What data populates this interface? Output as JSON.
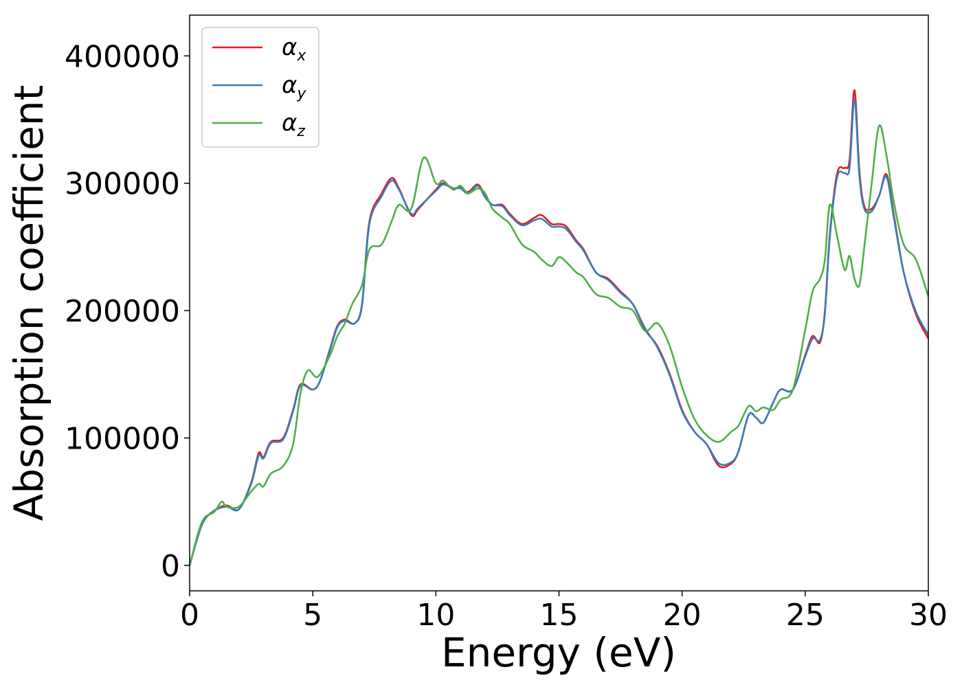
{
  "chart_data": {
    "type": "line",
    "title": "",
    "xlabel": "Energy (eV)",
    "ylabel": "Absorption coefficient",
    "xlim": [
      0,
      30
    ],
    "ylim": [
      -20000,
      432000
    ],
    "xticks": [
      0,
      5,
      10,
      15,
      20,
      25,
      30
    ],
    "yticks": [
      0,
      100000,
      200000,
      300000,
      400000
    ],
    "grid": false,
    "legend_position": "top-left",
    "series": [
      {
        "name": "α_x",
        "label_main": "α",
        "label_sub": "x",
        "color": "#e41a1c",
        "x": [
          0,
          0.5,
          1,
          1.5,
          2,
          2.5,
          2.8,
          3,
          3.3,
          3.8,
          4.2,
          4.5,
          5,
          5.3,
          5.7,
          6,
          6.3,
          6.7,
          7,
          7.3,
          7.8,
          8.2,
          8.5,
          9,
          9.3,
          10,
          10.3,
          10.7,
          11,
          11.3,
          11.7,
          12,
          12.3,
          12.7,
          13,
          13.5,
          14,
          14.3,
          14.7,
          15,
          15.3,
          15.7,
          16,
          16.5,
          17,
          17.5,
          18,
          18.5,
          19,
          19.5,
          20,
          20.5,
          21,
          21.5,
          22,
          22.3,
          22.7,
          23,
          23.3,
          23.7,
          24,
          24.5,
          25,
          25.3,
          25.6,
          25.8,
          26,
          26.3,
          26.6,
          26.8,
          27,
          27.2,
          27.4,
          27.7,
          28,
          28.3,
          28.6,
          29,
          29.5,
          30
        ],
        "y": [
          0,
          32000,
          43000,
          47000,
          44000,
          65000,
          88000,
          85000,
          97000,
          100000,
          122000,
          142000,
          138000,
          145000,
          170000,
          188000,
          193000,
          190000,
          205000,
          270000,
          292000,
          304000,
          296000,
          275000,
          280000,
          295000,
          300000,
          296000,
          297000,
          293000,
          299000,
          290000,
          283000,
          283000,
          276000,
          268000,
          273000,
          275000,
          268000,
          268000,
          266000,
          255000,
          248000,
          230000,
          225000,
          215000,
          205000,
          185000,
          172000,
          150000,
          122000,
          105000,
          95000,
          78000,
          80000,
          90000,
          118000,
          116000,
          112000,
          128000,
          138000,
          138000,
          165000,
          180000,
          175000,
          200000,
          260000,
          308000,
          312000,
          318000,
          373000,
          310000,
          282000,
          280000,
          290000,
          307000,
          275000,
          230000,
          197000,
          178000
        ]
      },
      {
        "name": "α_y",
        "label_main": "α",
        "label_sub": "y",
        "color": "#377eb8",
        "x": [
          0,
          0.5,
          1,
          1.5,
          2,
          2.5,
          2.8,
          3,
          3.3,
          3.8,
          4.2,
          4.5,
          5,
          5.3,
          5.7,
          6,
          6.3,
          6.7,
          7,
          7.3,
          7.8,
          8.2,
          8.5,
          9,
          9.3,
          10,
          10.3,
          10.7,
          11,
          11.3,
          11.7,
          12,
          12.3,
          12.7,
          13,
          13.5,
          14,
          14.3,
          14.7,
          15,
          15.3,
          15.7,
          16,
          16.5,
          17,
          17.5,
          18,
          18.5,
          19,
          19.5,
          20,
          20.5,
          21,
          21.5,
          22,
          22.3,
          22.7,
          23,
          23.3,
          23.7,
          24,
          24.5,
          25,
          25.3,
          25.6,
          25.8,
          26,
          26.3,
          26.6,
          26.8,
          27,
          27.2,
          27.4,
          27.7,
          28,
          28.3,
          28.6,
          29,
          29.5,
          30
        ],
        "y": [
          0,
          32000,
          43000,
          46000,
          44000,
          64000,
          86000,
          84000,
          96000,
          99000,
          121000,
          141000,
          138000,
          145000,
          169000,
          187000,
          192000,
          190000,
          204000,
          268000,
          290000,
          302000,
          295000,
          276000,
          281000,
          294000,
          299000,
          296000,
          296000,
          292000,
          298000,
          289000,
          283000,
          282000,
          275000,
          267000,
          271000,
          272000,
          266000,
          266000,
          264000,
          254000,
          247000,
          230000,
          224000,
          214000,
          205000,
          186000,
          171000,
          149000,
          121000,
          105000,
          95000,
          80000,
          81000,
          90000,
          118000,
          116000,
          112000,
          128000,
          138000,
          138000,
          164000,
          178000,
          177000,
          198000,
          258000,
          305000,
          308000,
          312000,
          366000,
          306000,
          280000,
          278000,
          290000,
          305000,
          273000,
          230000,
          199000,
          181000
        ]
      },
      {
        "name": "α_z",
        "label_main": "α",
        "label_sub": "z",
        "color": "#4daf4a",
        "x": [
          0,
          0.5,
          1,
          1.3,
          1.5,
          2,
          2.5,
          2.8,
          3,
          3.3,
          3.8,
          4.2,
          4.5,
          4.8,
          5.2,
          5.7,
          6,
          6.3,
          6.6,
          7,
          7.3,
          7.8,
          8.2,
          8.5,
          9,
          9.5,
          10,
          10.3,
          10.7,
          11,
          11.3,
          11.7,
          12,
          12.3,
          12.7,
          13,
          13.5,
          14,
          14.3,
          14.7,
          15,
          15.3,
          15.7,
          16,
          16.5,
          17,
          17.5,
          18,
          18.5,
          19,
          19.5,
          20,
          20.5,
          21,
          21.5,
          22,
          22.3,
          22.7,
          23,
          23.3,
          23.7,
          24,
          24.5,
          25,
          25.3,
          25.6,
          25.8,
          26,
          26.3,
          26.6,
          26.8,
          27,
          27.2,
          27.4,
          27.7,
          28,
          28.3,
          28.6,
          29,
          29.5,
          30
        ],
        "y": [
          0,
          34000,
          42000,
          50000,
          46000,
          46000,
          58000,
          64000,
          62000,
          72000,
          78000,
          95000,
          135000,
          153000,
          148000,
          165000,
          180000,
          190000,
          205000,
          220000,
          248000,
          252000,
          270000,
          283000,
          280000,
          320000,
          300000,
          302000,
          295000,
          298000,
          292000,
          296000,
          292000,
          280000,
          273000,
          268000,
          252000,
          246000,
          240000,
          235000,
          242000,
          238000,
          230000,
          226000,
          213000,
          210000,
          203000,
          200000,
          184000,
          190000,
          172000,
          140000,
          115000,
          102000,
          97000,
          105000,
          110000,
          125000,
          121000,
          124000,
          122000,
          130000,
          138000,
          185000,
          215000,
          225000,
          240000,
          283000,
          258000,
          232000,
          243000,
          225000,
          220000,
          250000,
          300000,
          345000,
          322000,
          285000,
          252000,
          240000,
          211000
        ]
      }
    ]
  }
}
